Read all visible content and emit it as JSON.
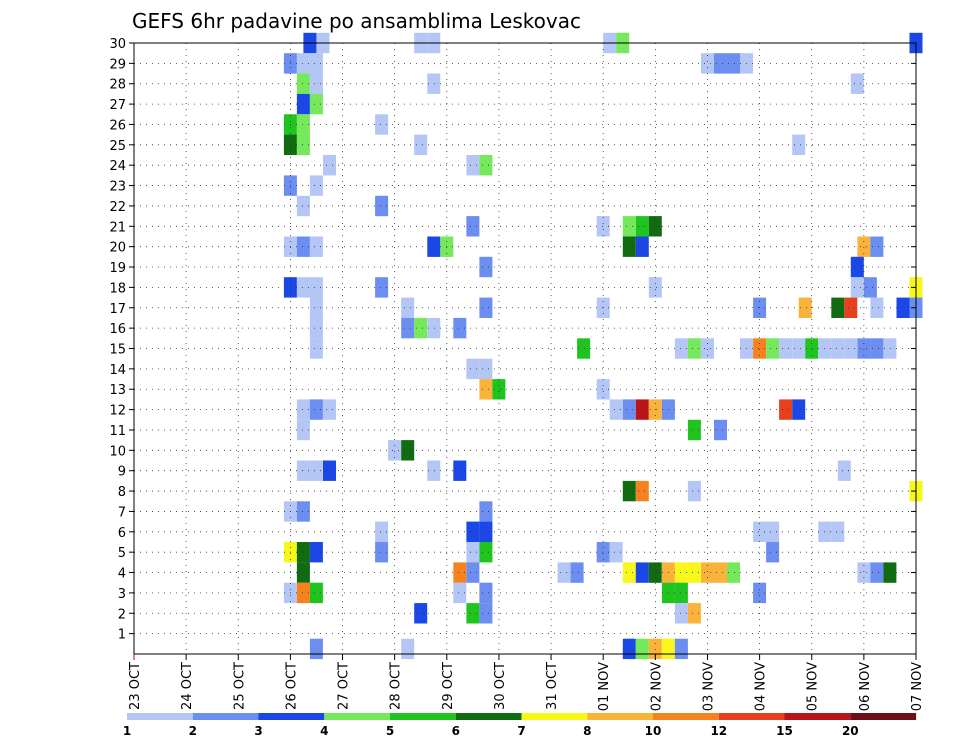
{
  "chart_data": {
    "type": "heatmap",
    "title": "GEFS 6hr padavine po ansamblima Leskovac",
    "xlabel": "",
    "ylabel": "",
    "x_ticks": [
      "23 OCT",
      "24 OCT",
      "25 OCT",
      "26 OCT",
      "27 OCT",
      "28 OCT",
      "29 OCT",
      "30 OCT",
      "31 OCT",
      "01 NOV",
      "02 NOV",
      "03 NOV",
      "04 NOV",
      "05 NOV",
      "06 NOV",
      "07 NOV"
    ],
    "y_ticks": [
      1,
      2,
      3,
      4,
      5,
      6,
      7,
      8,
      9,
      10,
      11,
      12,
      13,
      14,
      15,
      16,
      17,
      18,
      19,
      20,
      21,
      22,
      23,
      24,
      25,
      26,
      27,
      28,
      29,
      30
    ],
    "xlim_steps": [
      0,
      60
    ],
    "ylim": [
      0,
      30
    ],
    "grid": true,
    "colorbar": {
      "labels": [
        "1",
        "2",
        "3",
        "4",
        "5",
        "6",
        "7",
        "8",
        "10",
        "12",
        "15",
        "20"
      ],
      "colors": [
        "#b3c6f5",
        "#6b8ef0",
        "#1a47e6",
        "#75e85c",
        "#1fc41f",
        "#116b11",
        "#f7f71b",
        "#f9b33b",
        "#f5821f",
        "#e6401f",
        "#b8141a",
        "#6e0f15"
      ]
    },
    "cells": [
      {
        "step": 13.5,
        "member": 30,
        "level": 3
      },
      {
        "step": 14.5,
        "member": 30,
        "level": 1
      },
      {
        "step": 22,
        "member": 30,
        "level": 1
      },
      {
        "step": 23,
        "member": 30,
        "level": 1
      },
      {
        "step": 36.5,
        "member": 30,
        "level": 1
      },
      {
        "step": 37.5,
        "member": 30,
        "level": 4
      },
      {
        "step": 60,
        "member": 30,
        "level": 3
      },
      {
        "step": 12,
        "member": 29,
        "level": 2
      },
      {
        "step": 13,
        "member": 29,
        "level": 1
      },
      {
        "step": 14,
        "member": 29,
        "level": 1
      },
      {
        "step": 44,
        "member": 29,
        "level": 1
      },
      {
        "step": 45,
        "member": 29,
        "level": 2
      },
      {
        "step": 46,
        "member": 29,
        "level": 2
      },
      {
        "step": 47,
        "member": 29,
        "level": 1
      },
      {
        "step": 13,
        "member": 28,
        "level": 4
      },
      {
        "step": 14,
        "member": 28,
        "level": 1
      },
      {
        "step": 23,
        "member": 28,
        "level": 1
      },
      {
        "step": 55.5,
        "member": 28,
        "level": 1
      },
      {
        "step": 13,
        "member": 27,
        "level": 3
      },
      {
        "step": 14,
        "member": 27,
        "level": 4
      },
      {
        "step": 12,
        "member": 26,
        "level": 5
      },
      {
        "step": 13,
        "member": 26,
        "level": 4
      },
      {
        "step": 19,
        "member": 26,
        "level": 1
      },
      {
        "step": 12,
        "member": 25,
        "level": 6
      },
      {
        "step": 13,
        "member": 25,
        "level": 4
      },
      {
        "step": 22,
        "member": 25,
        "level": 1
      },
      {
        "step": 51,
        "member": 25,
        "level": 1
      },
      {
        "step": 15,
        "member": 24,
        "level": 1
      },
      {
        "step": 26,
        "member": 24,
        "level": 1
      },
      {
        "step": 27,
        "member": 24,
        "level": 4
      },
      {
        "step": 12,
        "member": 23,
        "level": 2
      },
      {
        "step": 14,
        "member": 23,
        "level": 1
      },
      {
        "step": 13,
        "member": 22,
        "level": 1
      },
      {
        "step": 19,
        "member": 22,
        "level": 2
      },
      {
        "step": 26,
        "member": 21,
        "level": 2
      },
      {
        "step": 36,
        "member": 21,
        "level": 1
      },
      {
        "step": 38,
        "member": 21,
        "level": 4
      },
      {
        "step": 39,
        "member": 21,
        "level": 5
      },
      {
        "step": 40,
        "member": 21,
        "level": 6
      },
      {
        "step": 12,
        "member": 20,
        "level": 1
      },
      {
        "step": 13,
        "member": 20,
        "level": 2
      },
      {
        "step": 14,
        "member": 20,
        "level": 1
      },
      {
        "step": 23,
        "member": 20,
        "level": 3
      },
      {
        "step": 24,
        "member": 20,
        "level": 4
      },
      {
        "step": 38,
        "member": 20,
        "level": 6
      },
      {
        "step": 39,
        "member": 20,
        "level": 3
      },
      {
        "step": 56,
        "member": 20,
        "level": 8
      },
      {
        "step": 57,
        "member": 20,
        "level": 2
      },
      {
        "step": 27,
        "member": 19,
        "level": 2
      },
      {
        "step": 55.5,
        "member": 19,
        "level": 3
      },
      {
        "step": 12,
        "member": 18,
        "level": 3
      },
      {
        "step": 13,
        "member": 18,
        "level": 1
      },
      {
        "step": 14,
        "member": 18,
        "level": 1
      },
      {
        "step": 19,
        "member": 18,
        "level": 2
      },
      {
        "step": 40,
        "member": 18,
        "level": 1
      },
      {
        "step": 55.5,
        "member": 18,
        "level": 1
      },
      {
        "step": 56.5,
        "member": 18,
        "level": 2
      },
      {
        "step": 60,
        "member": 18,
        "level": 7
      },
      {
        "step": 14,
        "member": 17,
        "level": 1
      },
      {
        "step": 21,
        "member": 17,
        "level": 1
      },
      {
        "step": 27,
        "member": 17,
        "level": 2
      },
      {
        "step": 36,
        "member": 17,
        "level": 1
      },
      {
        "step": 48,
        "member": 17,
        "level": 2
      },
      {
        "step": 51.5,
        "member": 17,
        "level": 8
      },
      {
        "step": 54,
        "member": 17,
        "level": 6
      },
      {
        "step": 55,
        "member": 17,
        "level": 10
      },
      {
        "step": 57,
        "member": 17,
        "level": 1
      },
      {
        "step": 59,
        "member": 17,
        "level": 3
      },
      {
        "step": 60,
        "member": 17,
        "level": 2
      },
      {
        "step": 14,
        "member": 16,
        "level": 1
      },
      {
        "step": 21,
        "member": 16,
        "level": 2
      },
      {
        "step": 22,
        "member": 16,
        "level": 4
      },
      {
        "step": 23,
        "member": 16,
        "level": 1
      },
      {
        "step": 25,
        "member": 16,
        "level": 2
      },
      {
        "step": 14,
        "member": 15,
        "level": 1
      },
      {
        "step": 34.5,
        "member": 15,
        "level": 5
      },
      {
        "step": 42,
        "member": 15,
        "level": 1
      },
      {
        "step": 43,
        "member": 15,
        "level": 4
      },
      {
        "step": 44,
        "member": 15,
        "level": 1
      },
      {
        "step": 47,
        "member": 15,
        "level": 1
      },
      {
        "step": 48,
        "member": 15,
        "level": 9
      },
      {
        "step": 49,
        "member": 15,
        "level": 4
      },
      {
        "step": 50,
        "member": 15,
        "level": 1
      },
      {
        "step": 51,
        "member": 15,
        "level": 1
      },
      {
        "step": 52,
        "member": 15,
        "level": 5
      },
      {
        "step": 53,
        "member": 15,
        "level": 1
      },
      {
        "step": 54,
        "member": 15,
        "level": 1
      },
      {
        "step": 55,
        "member": 15,
        "level": 1
      },
      {
        "step": 56,
        "member": 15,
        "level": 2
      },
      {
        "step": 57,
        "member": 15,
        "level": 2
      },
      {
        "step": 58,
        "member": 15,
        "level": 1
      },
      {
        "step": 26,
        "member": 14,
        "level": 1
      },
      {
        "step": 27,
        "member": 14,
        "level": 1
      },
      {
        "step": 27,
        "member": 13,
        "level": 8
      },
      {
        "step": 28,
        "member": 13,
        "level": 5
      },
      {
        "step": 36,
        "member": 13,
        "level": 1
      },
      {
        "step": 13,
        "member": 12,
        "level": 1
      },
      {
        "step": 14,
        "member": 12,
        "level": 2
      },
      {
        "step": 15,
        "member": 12,
        "level": 1
      },
      {
        "step": 37,
        "member": 12,
        "level": 1
      },
      {
        "step": 38,
        "member": 12,
        "level": 2
      },
      {
        "step": 39,
        "member": 12,
        "level": 11
      },
      {
        "step": 40,
        "member": 12,
        "level": 8
      },
      {
        "step": 41,
        "member": 12,
        "level": 2
      },
      {
        "step": 50,
        "member": 12,
        "level": 10
      },
      {
        "step": 51,
        "member": 12,
        "level": 3
      },
      {
        "step": 13,
        "member": 11,
        "level": 1
      },
      {
        "step": 43,
        "member": 11,
        "level": 5
      },
      {
        "step": 45,
        "member": 11,
        "level": 2
      },
      {
        "step": 20,
        "member": 10,
        "level": 1
      },
      {
        "step": 21,
        "member": 10,
        "level": 6
      },
      {
        "step": 13,
        "member": 9,
        "level": 1
      },
      {
        "step": 14,
        "member": 9,
        "level": 1
      },
      {
        "step": 15,
        "member": 9,
        "level": 3
      },
      {
        "step": 23,
        "member": 9,
        "level": 1
      },
      {
        "step": 25,
        "member": 9,
        "level": 3
      },
      {
        "step": 54.5,
        "member": 9,
        "level": 1
      },
      {
        "step": 38,
        "member": 8,
        "level": 6
      },
      {
        "step": 39,
        "member": 8,
        "level": 9
      },
      {
        "step": 43,
        "member": 8,
        "level": 1
      },
      {
        "step": 60,
        "member": 8,
        "level": 7
      },
      {
        "step": 12,
        "member": 7,
        "level": 1
      },
      {
        "step": 13,
        "member": 7,
        "level": 2
      },
      {
        "step": 27,
        "member": 7,
        "level": 2
      },
      {
        "step": 19,
        "member": 6,
        "level": 1
      },
      {
        "step": 26,
        "member": 6,
        "level": 3
      },
      {
        "step": 27,
        "member": 6,
        "level": 3
      },
      {
        "step": 48,
        "member": 6,
        "level": 1
      },
      {
        "step": 49,
        "member": 6,
        "level": 1
      },
      {
        "step": 53,
        "member": 6,
        "level": 1
      },
      {
        "step": 54,
        "member": 6,
        "level": 1
      },
      {
        "step": 12,
        "member": 5,
        "level": 7
      },
      {
        "step": 13,
        "member": 5,
        "level": 6
      },
      {
        "step": 14,
        "member": 5,
        "level": 3
      },
      {
        "step": 19,
        "member": 5,
        "level": 2
      },
      {
        "step": 26,
        "member": 5,
        "level": 1
      },
      {
        "step": 27,
        "member": 5,
        "level": 5
      },
      {
        "step": 36,
        "member": 5,
        "level": 2
      },
      {
        "step": 37,
        "member": 5,
        "level": 1
      },
      {
        "step": 49,
        "member": 5,
        "level": 2
      },
      {
        "step": 13,
        "member": 4,
        "level": 6
      },
      {
        "step": 25,
        "member": 4,
        "level": 9
      },
      {
        "step": 26,
        "member": 4,
        "level": 2
      },
      {
        "step": 33,
        "member": 4,
        "level": 1
      },
      {
        "step": 34,
        "member": 4,
        "level": 2
      },
      {
        "step": 38,
        "member": 4,
        "level": 7
      },
      {
        "step": 39,
        "member": 4,
        "level": 3
      },
      {
        "step": 40,
        "member": 4,
        "level": 6
      },
      {
        "step": 41,
        "member": 4,
        "level": 8
      },
      {
        "step": 42,
        "member": 4,
        "level": 7
      },
      {
        "step": 43,
        "member": 4,
        "level": 7
      },
      {
        "step": 44,
        "member": 4,
        "level": 8
      },
      {
        "step": 45,
        "member": 4,
        "level": 8
      },
      {
        "step": 46,
        "member": 4,
        "level": 4
      },
      {
        "step": 56,
        "member": 4,
        "level": 1
      },
      {
        "step": 57,
        "member": 4,
        "level": 2
      },
      {
        "step": 58,
        "member": 4,
        "level": 6
      },
      {
        "step": 12,
        "member": 3,
        "level": 1
      },
      {
        "step": 13,
        "member": 3,
        "level": 9
      },
      {
        "step": 14,
        "member": 3,
        "level": 5
      },
      {
        "step": 25,
        "member": 3,
        "level": 1
      },
      {
        "step": 27,
        "member": 3,
        "level": 2
      },
      {
        "step": 41,
        "member": 3,
        "level": 5
      },
      {
        "step": 42,
        "member": 3,
        "level": 5
      },
      {
        "step": 48,
        "member": 3,
        "level": 2
      },
      {
        "step": 22,
        "member": 2,
        "level": 3
      },
      {
        "step": 26,
        "member": 2,
        "level": 5
      },
      {
        "step": 27,
        "member": 2,
        "level": 2
      },
      {
        "step": 42,
        "member": 2,
        "level": 1
      },
      {
        "step": 43,
        "member": 2,
        "level": 8
      },
      {
        "step": 14,
        "member": 0.25,
        "level": 2
      },
      {
        "step": 21,
        "member": 0.25,
        "level": 1
      },
      {
        "step": 38,
        "member": 0.25,
        "level": 3
      },
      {
        "step": 39,
        "member": 0.25,
        "level": 4
      },
      {
        "step": 40,
        "member": 0.25,
        "level": 8
      },
      {
        "step": 41,
        "member": 0.25,
        "level": 7
      },
      {
        "step": 42,
        "member": 0.25,
        "level": 2
      }
    ]
  }
}
